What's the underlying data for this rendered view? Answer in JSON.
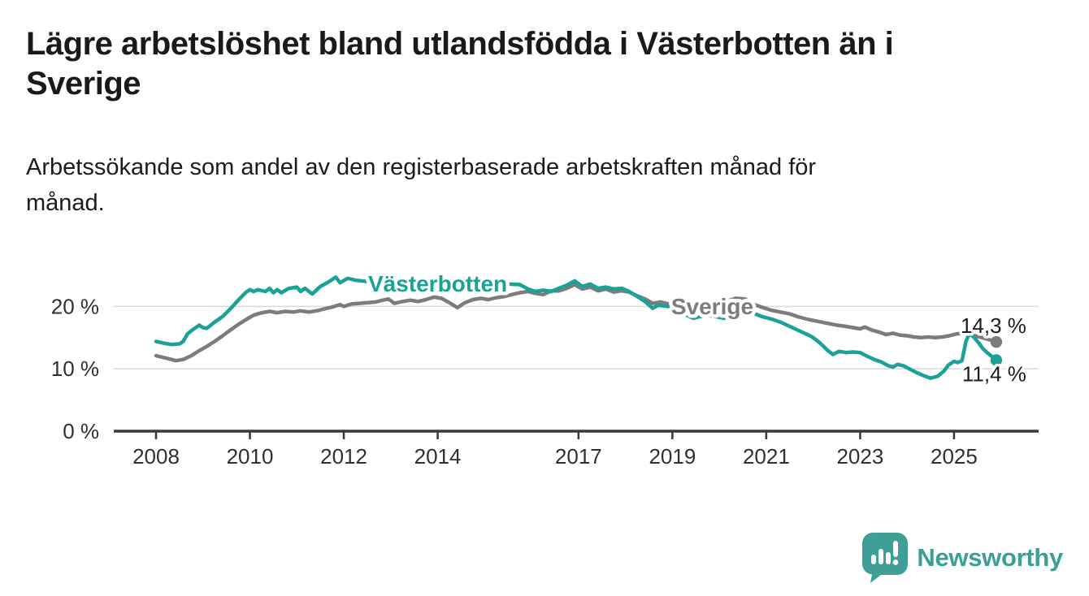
{
  "header": {
    "title_lines": [
      "Lägre arbetslöshet bland utlandsfödda i Västerbotten än i",
      "Sverige"
    ],
    "subtitle_lines": [
      "Arbetssökande som andel av den registerbaserade arbetskraften månad för",
      "månad."
    ]
  },
  "footer": {
    "brand_name": "Newsworthy",
    "brand_color": "#3aa096",
    "logo_icon": "speech-bubble-bar-chart-icon"
  },
  "chart_data": {
    "type": "line",
    "title": "Lägre arbetslöshet bland utlandsfödda i Västerbotten än i Sverige",
    "subtitle": "Arbetssökande som andel av den registerbaserade arbetskraften månad för månad.",
    "grid": "horizontal",
    "legend_position": "inline-labels",
    "x_axis": {
      "ticks": [
        2008,
        2010,
        2012,
        2014,
        2017,
        2019,
        2021,
        2023,
        2025
      ],
      "tick_labels": [
        "2008",
        "2010",
        "2012",
        "2014",
        "2017",
        "2019",
        "2021",
        "2023",
        "2025"
      ]
    },
    "y_axis": {
      "ticks": [
        0,
        10,
        20
      ],
      "tick_labels": [
        "0 %",
        "10 %",
        "20 %"
      ],
      "unit": "%"
    },
    "xlim": [
      2007.1,
      2026.3
    ],
    "ylim": [
      0,
      26.5
    ],
    "colors": {
      "vasterbotten": "#19a295",
      "sverige": "#7c7c7c",
      "gridline": "#d9d9d9",
      "axis": "#3a3a3a",
      "value_label": "#1b1b1b"
    },
    "series": [
      {
        "name": "Sverige",
        "color": "#7c7c7c",
        "end_label": "14,3 %",
        "end_value": 14.3,
        "label_at": {
          "x": 2019.85,
          "y": 20.05
        },
        "end_label_offset": {
          "dx": 37,
          "dy": -11
        },
        "points": [
          [
            2008.0,
            12.1
          ],
          [
            2008.17,
            11.8
          ],
          [
            2008.33,
            11.5
          ],
          [
            2008.42,
            11.3
          ],
          [
            2008.58,
            11.5
          ],
          [
            2008.75,
            12.1
          ],
          [
            2008.92,
            12.9
          ],
          [
            2009.08,
            13.6
          ],
          [
            2009.25,
            14.4
          ],
          [
            2009.42,
            15.3
          ],
          [
            2009.58,
            16.2
          ],
          [
            2009.75,
            17.1
          ],
          [
            2009.92,
            17.9
          ],
          [
            2010.08,
            18.6
          ],
          [
            2010.25,
            19.0
          ],
          [
            2010.42,
            19.2
          ],
          [
            2010.58,
            19.0
          ],
          [
            2010.75,
            19.2
          ],
          [
            2010.92,
            19.1
          ],
          [
            2011.08,
            19.3
          ],
          [
            2011.25,
            19.1
          ],
          [
            2011.42,
            19.3
          ],
          [
            2011.58,
            19.6
          ],
          [
            2011.75,
            19.9
          ],
          [
            2011.92,
            20.3
          ],
          [
            2012.0,
            20.0
          ],
          [
            2012.17,
            20.4
          ],
          [
            2012.33,
            20.5
          ],
          [
            2012.5,
            20.6
          ],
          [
            2012.67,
            20.7
          ],
          [
            2012.83,
            21.0
          ],
          [
            2012.95,
            21.2
          ],
          [
            2013.08,
            20.5
          ],
          [
            2013.25,
            20.8
          ],
          [
            2013.42,
            21.0
          ],
          [
            2013.58,
            20.8
          ],
          [
            2013.75,
            21.1
          ],
          [
            2013.92,
            21.5
          ],
          [
            2014.08,
            21.3
          ],
          [
            2014.25,
            20.6
          ],
          [
            2014.42,
            19.8
          ],
          [
            2014.58,
            20.6
          ],
          [
            2014.75,
            21.1
          ],
          [
            2014.92,
            21.3
          ],
          [
            2015.08,
            21.1
          ],
          [
            2015.25,
            21.4
          ],
          [
            2015.42,
            21.6
          ],
          [
            2015.58,
            21.9
          ],
          [
            2015.75,
            22.2
          ],
          [
            2015.92,
            22.4
          ],
          [
            2016.08,
            22.1
          ],
          [
            2016.25,
            21.9
          ],
          [
            2016.42,
            22.5
          ],
          [
            2016.58,
            22.5
          ],
          [
            2016.75,
            22.9
          ],
          [
            2016.92,
            23.5
          ],
          [
            2017.08,
            22.8
          ],
          [
            2017.25,
            23.1
          ],
          [
            2017.42,
            22.5
          ],
          [
            2017.58,
            22.8
          ],
          [
            2017.75,
            22.3
          ],
          [
            2017.92,
            22.5
          ],
          [
            2018.08,
            22.3
          ],
          [
            2018.25,
            21.7
          ],
          [
            2018.42,
            21.2
          ],
          [
            2018.58,
            20.5
          ],
          [
            2018.75,
            20.7
          ],
          [
            2018.92,
            20.4
          ],
          [
            2019.1,
            20.2
          ],
          [
            2019.3,
            19.9
          ],
          [
            2019.5,
            19.8
          ],
          [
            2019.7,
            20.0
          ],
          [
            2019.9,
            20.3
          ],
          [
            2020.1,
            20.7
          ],
          [
            2020.35,
            21.3
          ],
          [
            2020.55,
            21.2
          ],
          [
            2020.75,
            20.3
          ],
          [
            2020.9,
            19.9
          ],
          [
            2021.1,
            19.4
          ],
          [
            2021.3,
            19.1
          ],
          [
            2021.5,
            18.8
          ],
          [
            2021.7,
            18.3
          ],
          [
            2021.9,
            17.9
          ],
          [
            2022.1,
            17.6
          ],
          [
            2022.3,
            17.3
          ],
          [
            2022.5,
            17.0
          ],
          [
            2022.7,
            16.8
          ],
          [
            2022.85,
            16.6
          ],
          [
            2023.0,
            16.4
          ],
          [
            2023.1,
            16.7
          ],
          [
            2023.25,
            16.2
          ],
          [
            2023.4,
            15.9
          ],
          [
            2023.55,
            15.5
          ],
          [
            2023.7,
            15.7
          ],
          [
            2023.85,
            15.4
          ],
          [
            2024.0,
            15.3
          ],
          [
            2024.15,
            15.1
          ],
          [
            2024.3,
            15.0
          ],
          [
            2024.45,
            15.1
          ],
          [
            2024.6,
            15.0
          ],
          [
            2024.75,
            15.1
          ],
          [
            2024.9,
            15.3
          ],
          [
            2025.05,
            15.6
          ],
          [
            2025.2,
            15.7
          ],
          [
            2025.35,
            15.5
          ],
          [
            2025.5,
            15.2
          ],
          [
            2025.65,
            14.9
          ],
          [
            2025.78,
            14.6
          ],
          [
            2025.9,
            14.3
          ]
        ]
      },
      {
        "name": "Västerbotten",
        "color": "#19a295",
        "end_label": "11,4 %",
        "end_value": 11.4,
        "label_at": {
          "x": 2014.0,
          "y": 23.7
        },
        "end_label_offset": {
          "dx": 37,
          "dy": 26
        },
        "points": [
          [
            2008.0,
            14.4
          ],
          [
            2008.17,
            14.1
          ],
          [
            2008.33,
            13.9
          ],
          [
            2008.5,
            14.0
          ],
          [
            2008.58,
            14.4
          ],
          [
            2008.67,
            15.6
          ],
          [
            2008.75,
            16.1
          ],
          [
            2008.92,
            17.0
          ],
          [
            2009.0,
            16.6
          ],
          [
            2009.08,
            16.5
          ],
          [
            2009.25,
            17.5
          ],
          [
            2009.42,
            18.4
          ],
          [
            2009.58,
            19.6
          ],
          [
            2009.75,
            21.0
          ],
          [
            2009.92,
            22.3
          ],
          [
            2010.0,
            22.7
          ],
          [
            2010.08,
            22.4
          ],
          [
            2010.17,
            22.7
          ],
          [
            2010.33,
            22.4
          ],
          [
            2010.42,
            22.9
          ],
          [
            2010.5,
            22.2
          ],
          [
            2010.58,
            22.7
          ],
          [
            2010.67,
            22.2
          ],
          [
            2010.83,
            22.9
          ],
          [
            2011.0,
            23.1
          ],
          [
            2011.08,
            22.4
          ],
          [
            2011.17,
            22.9
          ],
          [
            2011.33,
            22.0
          ],
          [
            2011.5,
            23.2
          ],
          [
            2011.67,
            23.9
          ],
          [
            2011.83,
            24.7
          ],
          [
            2011.92,
            23.8
          ],
          [
            2012.08,
            24.5
          ],
          [
            2012.25,
            24.2
          ],
          [
            2012.5,
            24.0
          ],
          [
            2012.83,
            23.6
          ],
          [
            2013.17,
            23.4
          ],
          [
            2013.5,
            23.2
          ],
          [
            2013.83,
            23.0
          ],
          [
            2014.17,
            23.1
          ],
          [
            2014.5,
            23.2
          ],
          [
            2014.83,
            23.3
          ],
          [
            2015.17,
            23.4
          ],
          [
            2015.5,
            23.6
          ],
          [
            2015.75,
            23.5
          ],
          [
            2015.92,
            22.8
          ],
          [
            2016.08,
            22.4
          ],
          [
            2016.25,
            22.6
          ],
          [
            2016.42,
            22.4
          ],
          [
            2016.58,
            22.9
          ],
          [
            2016.75,
            23.4
          ],
          [
            2016.92,
            24.1
          ],
          [
            2017.08,
            23.2
          ],
          [
            2017.25,
            23.6
          ],
          [
            2017.42,
            22.9
          ],
          [
            2017.58,
            23.1
          ],
          [
            2017.75,
            22.8
          ],
          [
            2017.92,
            22.9
          ],
          [
            2018.08,
            22.4
          ],
          [
            2018.25,
            21.6
          ],
          [
            2018.42,
            20.8
          ],
          [
            2018.58,
            19.7
          ],
          [
            2018.7,
            20.2
          ],
          [
            2018.9,
            20.0
          ],
          [
            2019.1,
            19.3
          ],
          [
            2019.3,
            18.6
          ],
          [
            2019.45,
            18.1
          ],
          [
            2019.6,
            18.4
          ],
          [
            2019.75,
            18.6
          ],
          [
            2019.9,
            18.4
          ],
          [
            2020.1,
            18.1
          ],
          [
            2020.3,
            19.0
          ],
          [
            2020.5,
            19.7
          ],
          [
            2020.7,
            19.0
          ],
          [
            2020.9,
            18.4
          ],
          [
            2021.1,
            18.0
          ],
          [
            2021.3,
            17.5
          ],
          [
            2021.5,
            16.8
          ],
          [
            2021.7,
            16.1
          ],
          [
            2021.9,
            15.4
          ],
          [
            2022.0,
            15.0
          ],
          [
            2022.15,
            14.1
          ],
          [
            2022.3,
            13.0
          ],
          [
            2022.42,
            12.3
          ],
          [
            2022.55,
            12.8
          ],
          [
            2022.7,
            12.6
          ],
          [
            2022.85,
            12.7
          ],
          [
            2023.0,
            12.6
          ],
          [
            2023.15,
            12.0
          ],
          [
            2023.3,
            11.5
          ],
          [
            2023.45,
            11.1
          ],
          [
            2023.6,
            10.5
          ],
          [
            2023.7,
            10.3
          ],
          [
            2023.8,
            10.7
          ],
          [
            2023.92,
            10.5
          ],
          [
            2024.05,
            10.0
          ],
          [
            2024.2,
            9.4
          ],
          [
            2024.35,
            8.9
          ],
          [
            2024.5,
            8.5
          ],
          [
            2024.65,
            8.8
          ],
          [
            2024.78,
            9.6
          ],
          [
            2024.88,
            10.6
          ],
          [
            2025.0,
            11.2
          ],
          [
            2025.08,
            11.0
          ],
          [
            2025.17,
            11.3
          ],
          [
            2025.25,
            14.3
          ],
          [
            2025.32,
            15.6
          ],
          [
            2025.42,
            15.1
          ],
          [
            2025.52,
            14.2
          ],
          [
            2025.62,
            13.2
          ],
          [
            2025.72,
            12.5
          ],
          [
            2025.82,
            11.9
          ],
          [
            2025.9,
            11.4
          ]
        ]
      }
    ]
  }
}
